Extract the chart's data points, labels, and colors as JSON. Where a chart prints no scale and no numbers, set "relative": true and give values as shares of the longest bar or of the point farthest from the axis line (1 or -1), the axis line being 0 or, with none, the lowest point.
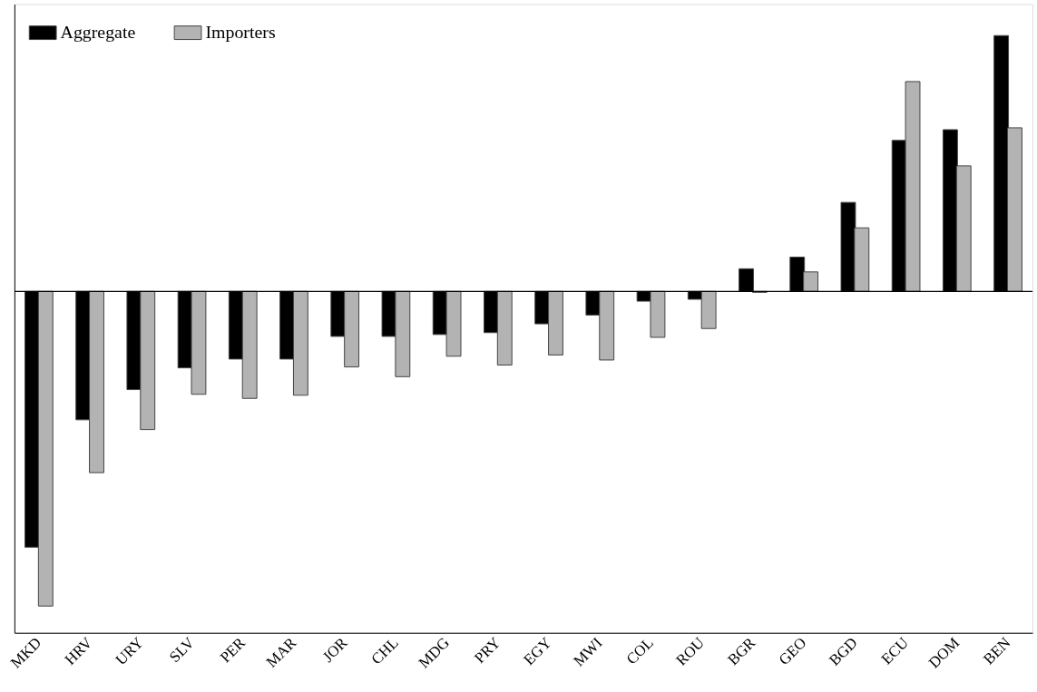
{
  "chart_data": {
    "type": "bar",
    "relative": true,
    "legend": "top left",
    "grid": false,
    "categories": [
      "MKD",
      "HRV",
      "URY",
      "SLV",
      "PER",
      "MAR",
      "JOR",
      "CHL",
      "MDG",
      "PRY",
      "EGY",
      "MWI",
      "COL",
      "ROU",
      "BGR",
      "GEO",
      "BGD",
      "ECU",
      "DOM",
      "BEN"
    ],
    "series": [
      {
        "name": "Aggregate",
        "color": "#000000",
        "values": [
          -0.813,
          -0.408,
          -0.312,
          -0.243,
          -0.215,
          -0.215,
          -0.143,
          -0.143,
          -0.137,
          -0.131,
          -0.103,
          -0.075,
          -0.031,
          -0.025,
          0.072,
          0.109,
          0.283,
          0.48,
          0.514,
          0.813
        ]
      },
      {
        "name": "Importers",
        "color": "#b3b3b3",
        "values": [
          -1,
          -0.576,
          -0.439,
          -0.327,
          -0.34,
          -0.33,
          -0.24,
          -0.271,
          -0.206,
          -0.234,
          -0.202,
          -0.218,
          -0.146,
          -0.118,
          -0.003,
          0.062,
          0.202,
          0.667,
          0.399,
          0.52
        ]
      }
    ]
  }
}
